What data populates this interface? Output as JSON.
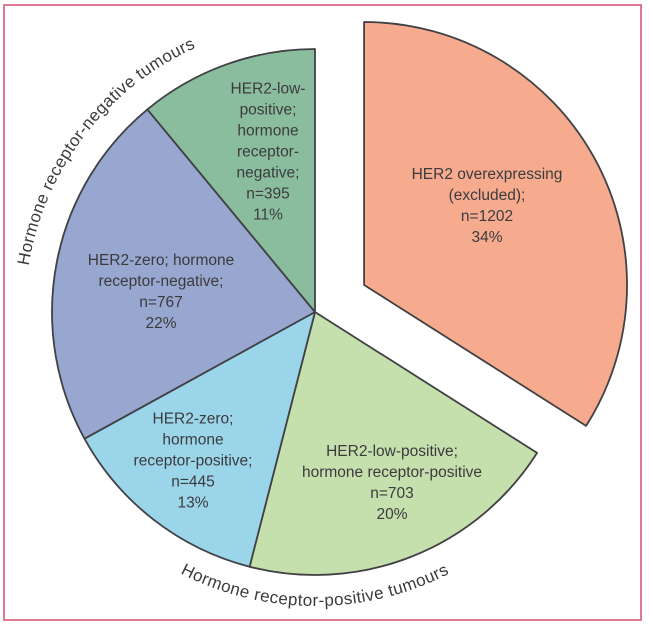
{
  "figure": {
    "border_color": "#DE7893",
    "background_color": "#FFFFFF",
    "text_color": "#3B3B3D"
  },
  "chart_data": {
    "type": "pie",
    "title": "",
    "start_angle_deg": 0,
    "direction": "clockwise",
    "legend": "none",
    "slices": [
      {
        "name": "her2-overexpressing-excluded",
        "category": "HER2 overexpressing (excluded)",
        "n": 1202,
        "percent": 34,
        "color": "#F6AB8F",
        "exploded": true,
        "label": "HER2 overexpressing\n(excluded);\nn=1202\n34%"
      },
      {
        "name": "her2-low-positive-hormone-receptor-positive",
        "category": "HER2-low-positive; hormone receptor-positive",
        "n": 703,
        "percent": 20,
        "color": "#C5DFAD",
        "exploded": false,
        "label": "HER2-low-positive;\nhormone receptor-positive\nn=703\n20%"
      },
      {
        "name": "her2-zero-hormone-receptor-positive",
        "category": "HER2-zero; hormone receptor-positive",
        "n": 445,
        "percent": 13,
        "color": "#9BD5EA",
        "exploded": false,
        "label": "HER2-zero;\nhormone\nreceptor-positive;\nn=445\n13%"
      },
      {
        "name": "her2-zero-hormone-receptor-negative",
        "category": "HER2-zero; hormone receptor-negative",
        "n": 767,
        "percent": 22,
        "color": "#98A7D0",
        "exploded": false,
        "label": "HER2-zero; hormone\nreceptor-negative;\nn=767\n22%"
      },
      {
        "name": "her2-low-positive-hormone-receptor-negative",
        "category": "HER2-low-positive; hormone receptor-negative",
        "n": 395,
        "percent": 11,
        "color": "#8ABD9E",
        "exploded": false,
        "label": "HER2-low-\npositive;\nhormone\nreceptor-\nnegative;\nn=395\n11%"
      }
    ],
    "arc_labels": {
      "negative": "Hormone receptor-negative tumours",
      "positive": "Hormone receptor-positive tumours"
    }
  }
}
